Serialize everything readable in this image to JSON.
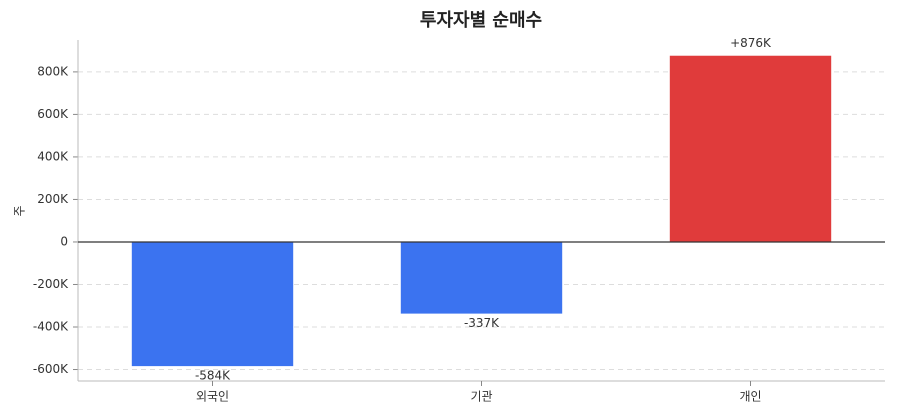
{
  "chart_data": {
    "type": "bar",
    "title": "투자자별 순매수",
    "y_label": "주",
    "categories": [
      "외국인",
      "기관",
      "개인"
    ],
    "values": [
      -584000,
      -337000,
      876000
    ],
    "value_labels": [
      "-584K",
      "-337K",
      "+876K"
    ],
    "colors": [
      "#3b73f0",
      "#3b73f0",
      "#e03b3b"
    ],
    "ylim": [
      -654000,
      950000
    ],
    "yticks": [
      {
        "value": -600000,
        "label": "-600K"
      },
      {
        "value": -400000,
        "label": "-400K"
      },
      {
        "value": -200000,
        "label": "-200K"
      },
      0,
      {
        "value": 200000,
        "label": "200K"
      },
      {
        "value": 400000,
        "label": "400K"
      },
      {
        "value": 600000,
        "label": "600K"
      },
      {
        "value": 800000,
        "label": "800K"
      }
    ],
    "grid": true
  }
}
